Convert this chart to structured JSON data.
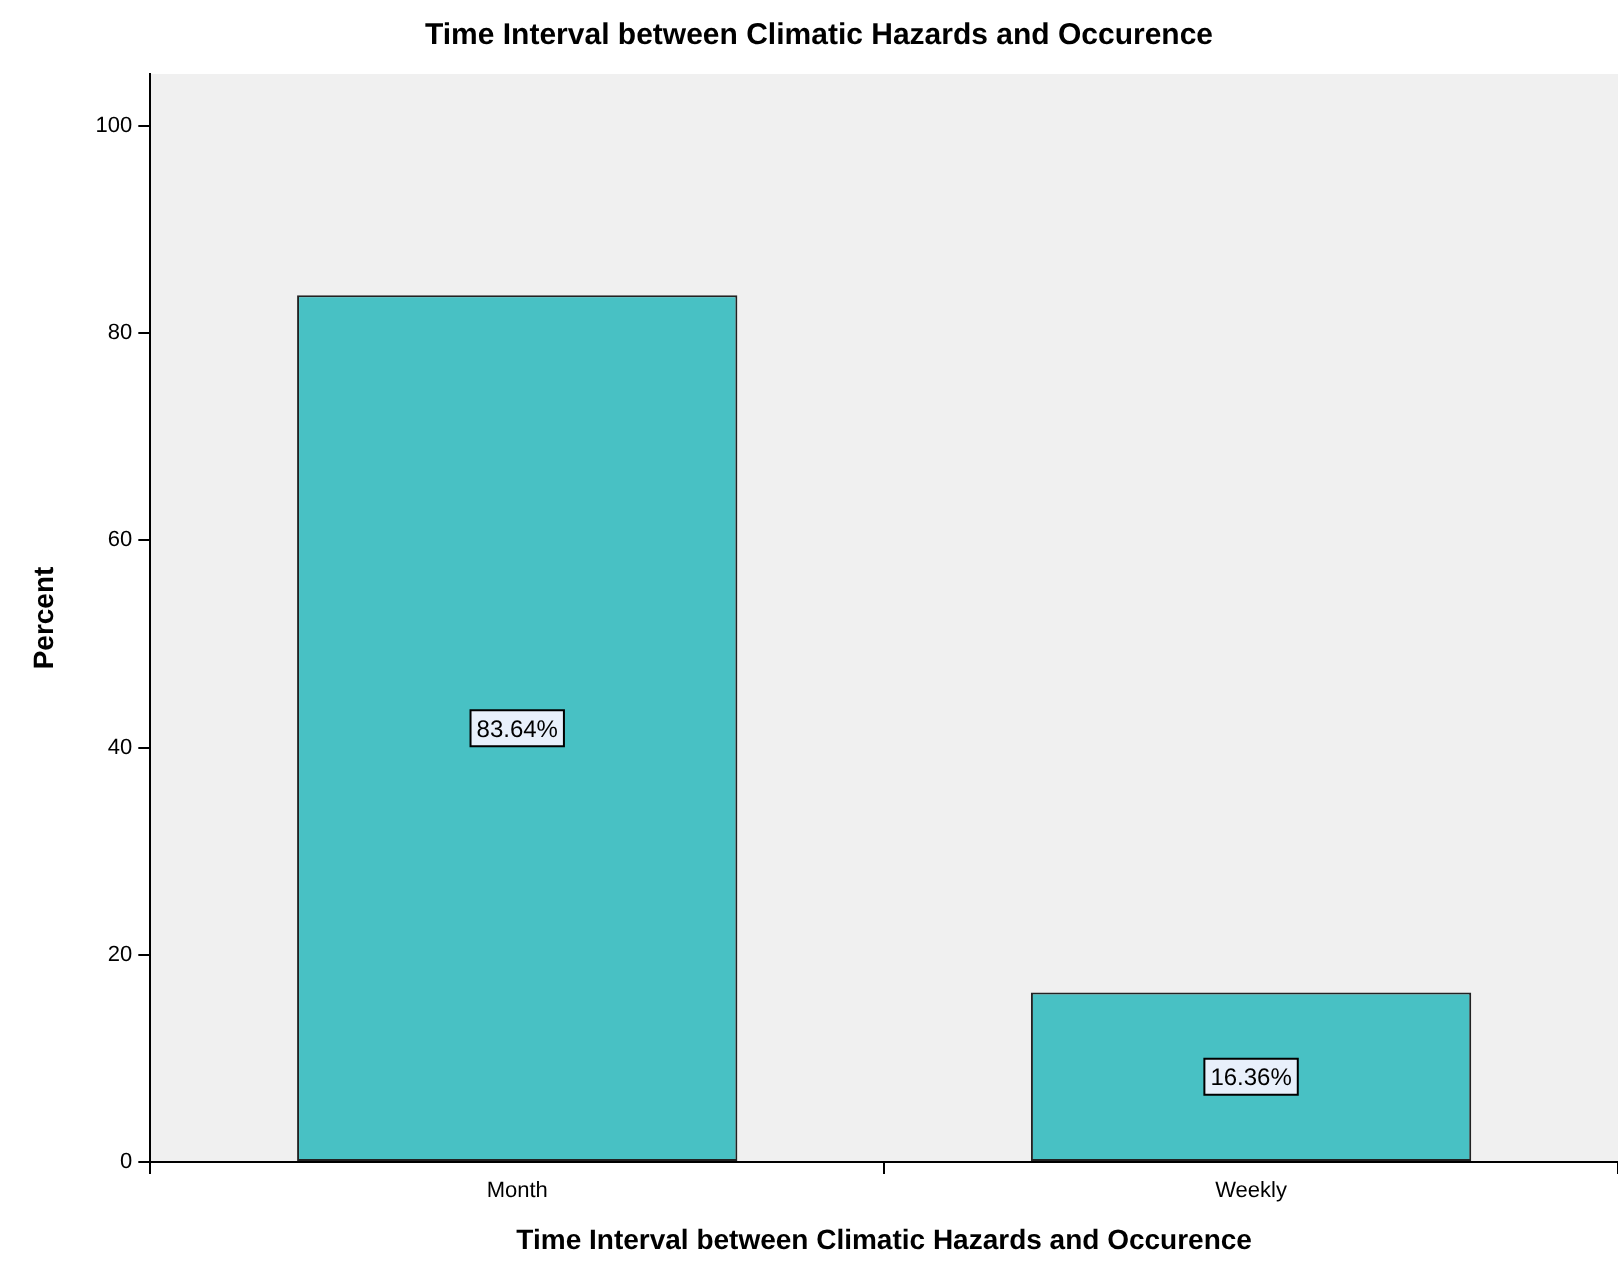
{
  "chart_data": {
    "type": "bar",
    "title": "Time Interval between Climatic Hazards and Occurence",
    "xlabel": "Time Interval between Climatic Hazards and Occurence",
    "ylabel": "Percent",
    "categories": [
      "Month",
      "Weekly"
    ],
    "values": [
      83.64,
      16.36
    ],
    "value_labels": [
      "83.64%",
      "16.36%"
    ],
    "color": "#48c1c4",
    "ylim": [
      0,
      105
    ],
    "yticks": [
      0,
      20,
      40,
      60,
      80,
      100
    ],
    "grid": false,
    "legend": false
  }
}
